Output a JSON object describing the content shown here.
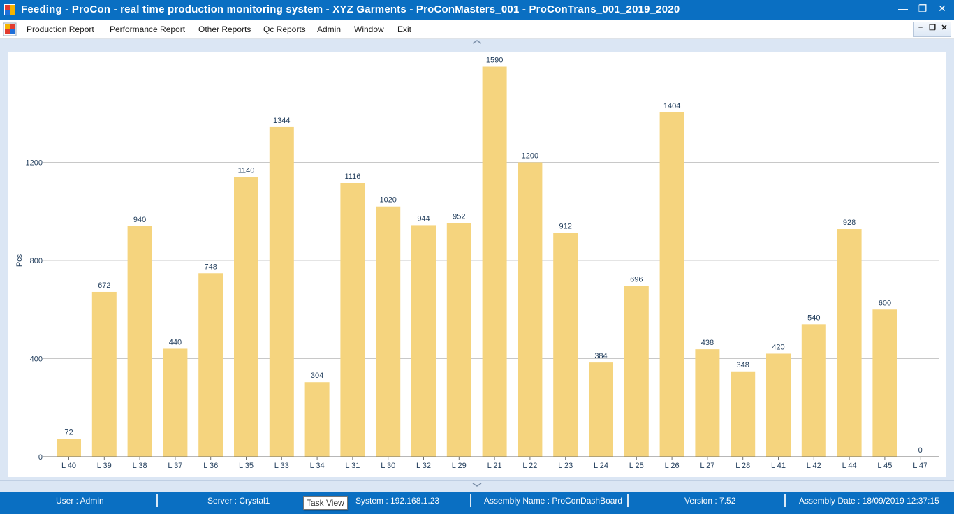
{
  "window": {
    "title": "Feeding - ProCon - real time production monitoring system - XYZ Garments - ProConMasters_001 - ProConTrans_001_2019_2020",
    "minimize_glyph": "—",
    "restore_glyph": "❐",
    "close_glyph": "✕"
  },
  "menu": {
    "items": [
      {
        "label": "Production Report"
      },
      {
        "label": "Performance Report"
      },
      {
        "label": "Other Reports"
      },
      {
        "label": "Qc Reports"
      },
      {
        "label": "Admin"
      },
      {
        "label": "Window"
      },
      {
        "label": "Exit"
      }
    ],
    "mdi_minimize": "–",
    "mdi_restore": "❐",
    "mdi_close": "✕"
  },
  "status": {
    "user": "User : Admin",
    "server": "Server : Crystal1",
    "system": "System : 192.168.1.23",
    "assembly": "Assembly Name : ProConDashBoard",
    "version": "Version : 7.52",
    "date": "Assembly Date : 18/09/2019 12:37:15"
  },
  "tooltip": "Task View",
  "colors": {
    "titlebar": "#0a6fc2",
    "bar": "#f5d47e",
    "label": "#1f3b5a",
    "grid": "#c8c8c8"
  },
  "icons": {
    "app": "app-logo-icon",
    "grip_top": "chevron-up-icon",
    "grip_bottom": "chevron-down-icon"
  },
  "chart_data": {
    "type": "bar",
    "categories": [
      "L 40",
      "L 39",
      "L 38",
      "L 37",
      "L 36",
      "L 35",
      "L 33",
      "L 34",
      "L 31",
      "L 30",
      "L 32",
      "L 29",
      "L 21",
      "L 22",
      "L 23",
      "L 24",
      "L 25",
      "L 26",
      "L 27",
      "L 28",
      "L 41",
      "L 42",
      "L 44",
      "L 45",
      "L 47"
    ],
    "values": [
      72,
      672,
      940,
      440,
      748,
      1140,
      1344,
      304,
      1116,
      1020,
      944,
      952,
      1590,
      1200,
      912,
      384,
      696,
      1404,
      438,
      348,
      420,
      540,
      928,
      600,
      0
    ],
    "ylabel": "Pcs",
    "yticks": [
      0,
      400,
      800,
      1200
    ],
    "ylim": [
      0,
      1600
    ],
    "grid": true,
    "data_labels": true
  }
}
